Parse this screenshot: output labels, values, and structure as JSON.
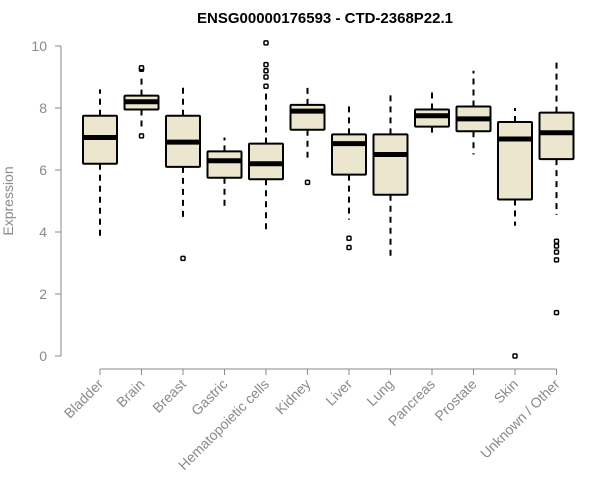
{
  "chart_data": {
    "type": "box",
    "title": "ENSG00000176593 - CTD-2368P22.1",
    "ylabel": "Expression",
    "xlabel": "",
    "ylim": [
      0,
      10
    ],
    "yticks": [
      "0",
      "2",
      "4",
      "6",
      "8",
      "10"
    ],
    "categories": [
      "Bladder",
      "Brain",
      "Breast",
      "Gastric",
      "Hematopoietic cells",
      "Kidney",
      "Liver",
      "Lung",
      "Pancreas",
      "Prostate",
      "Skin",
      "Unknown / Other"
    ],
    "boxes": [
      {
        "whisker_low": 3.85,
        "q1": 6.2,
        "median": 7.05,
        "q3": 7.75,
        "whisker_high": 8.6,
        "outliers": []
      },
      {
        "whisker_low": 7.4,
        "q1": 7.95,
        "median": 8.2,
        "q3": 8.4,
        "whisker_high": 9.1,
        "outliers": [
          9.25,
          9.3,
          7.1
        ]
      },
      {
        "whisker_low": 4.4,
        "q1": 6.1,
        "median": 6.9,
        "q3": 7.75,
        "whisker_high": 8.8,
        "outliers": [
          3.15
        ]
      },
      {
        "whisker_low": 4.7,
        "q1": 5.75,
        "median": 6.3,
        "q3": 6.6,
        "whisker_high": 7.05,
        "outliers": []
      },
      {
        "whisker_low": 4.0,
        "q1": 5.7,
        "median": 6.2,
        "q3": 6.85,
        "whisker_high": 8.7,
        "outliers": [
          10.1,
          9.4,
          9.2,
          9.0,
          8.7
        ]
      },
      {
        "whisker_low": 6.4,
        "q1": 7.3,
        "median": 7.9,
        "q3": 8.1,
        "whisker_high": 8.8,
        "outliers": [
          5.6
        ]
      },
      {
        "whisker_low": 4.4,
        "q1": 5.85,
        "median": 6.85,
        "q3": 7.15,
        "whisker_high": 8.1,
        "outliers": [
          3.8,
          3.5
        ]
      },
      {
        "whisker_low": 3.1,
        "q1": 5.2,
        "median": 6.5,
        "q3": 7.15,
        "whisker_high": 8.55,
        "outliers": []
      },
      {
        "whisker_low": 7.1,
        "q1": 7.4,
        "median": 7.75,
        "q3": 7.95,
        "whisker_high": 8.5,
        "outliers": []
      },
      {
        "whisker_low": 6.5,
        "q1": 7.25,
        "median": 7.65,
        "q3": 8.05,
        "whisker_high": 9.2,
        "outliers": []
      },
      {
        "whisker_low": 4.2,
        "q1": 5.05,
        "median": 7.0,
        "q3": 7.55,
        "whisker_high": 8.0,
        "outliers": [
          0.0
        ]
      },
      {
        "whisker_low": 4.55,
        "q1": 6.35,
        "median": 7.2,
        "q3": 7.85,
        "whisker_high": 9.55,
        "outliers": [
          3.7,
          3.55,
          3.35,
          3.1,
          1.4
        ]
      }
    ],
    "colors": {
      "box_fill": "#ede6cf",
      "box_stroke": "#000000",
      "axis": "#8a8a8a",
      "label": "#8a8a8a"
    },
    "grid": false,
    "legend": "none"
  }
}
